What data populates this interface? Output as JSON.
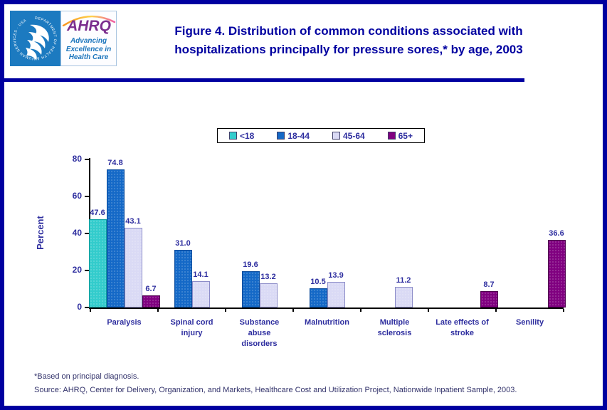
{
  "page": {
    "title_line1": "Figure 4. Distribution of common conditions associated with",
    "title_line2": "hospitalizations principally for pressure sores,* by age, 2003"
  },
  "logo": {
    "ahrq": "AHRQ",
    "tagline_line1": "Advancing",
    "tagline_line2": "Excellence in",
    "tagline_line3": "Health Care",
    "seal_text": "DEPARTMENT OF HEALTH & HUMAN SERVICES · USA"
  },
  "colors": {
    "frame": "#0000A0",
    "title": "#0000A0",
    "chartText": "#2E2E9F",
    "axis": "#000000",
    "footnote": "#33336B"
  },
  "chart_data": {
    "type": "bar",
    "title": "Distribution of common conditions associated with hospitalizations principally for pressure sores, by age, 2003",
    "categories": [
      "Paralysis",
      "Spinal cord\ninjury",
      "Substance\nabuse\ndisorders",
      "Malnutrition",
      "Multiple\nsclerosis",
      "Late effects of\nstroke",
      "Senility"
    ],
    "series": [
      {
        "name": "<18",
        "fill": "#33CCCC",
        "border": "#0E9E9E",
        "values": [
          47.6,
          null,
          null,
          null,
          null,
          null,
          null
        ]
      },
      {
        "name": "18-44",
        "fill": "#1569C7",
        "border": "#0B4C9C",
        "values": [
          74.8,
          31.0,
          19.6,
          10.5,
          null,
          null,
          null
        ]
      },
      {
        "name": "45-64",
        "fill": "#DADAF5",
        "border": "#8C8CC8",
        "values": [
          43.1,
          14.1,
          13.2,
          13.9,
          11.2,
          null,
          null
        ]
      },
      {
        "name": "65+",
        "fill": "#800080",
        "border": "#4D004D",
        "values": [
          6.7,
          null,
          null,
          null,
          null,
          8.7,
          36.6
        ]
      }
    ],
    "xlabel": "",
    "ylabel": "Percent",
    "ylim": [
      0,
      80
    ],
    "yticks": [
      0,
      20,
      40,
      60,
      80
    ],
    "grid": false,
    "legend_position": "top"
  },
  "footnotes": {
    "note": "*Based on principal diagnosis.",
    "source": "Source: AHRQ, Center for Delivery, Organization, and Markets, Healthcare Cost and Utilization Project, Nationwide Inpatient Sample, 2003."
  }
}
